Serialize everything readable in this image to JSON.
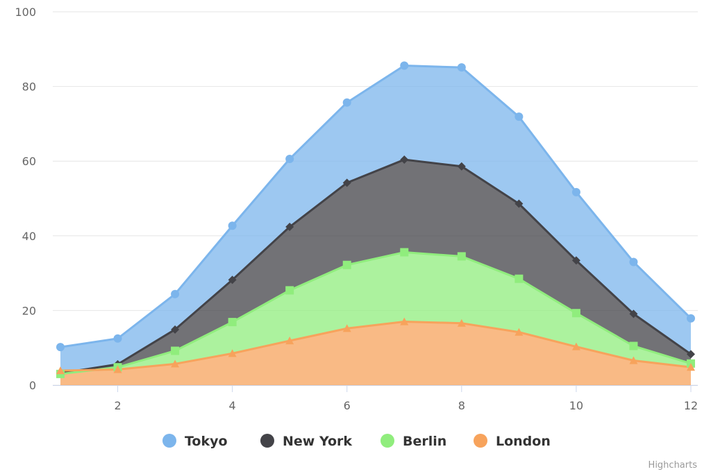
{
  "chart_data": {
    "type": "area",
    "stacking": "normal",
    "x": [
      1,
      2,
      3,
      4,
      5,
      6,
      7,
      8,
      9,
      10,
      11,
      12
    ],
    "x_ticks": [
      "2",
      "4",
      "6",
      "8",
      "10",
      "12"
    ],
    "y_ticks": [
      "0",
      "20",
      "40",
      "60",
      "80",
      "100"
    ],
    "xlim": [
      1,
      12
    ],
    "ylim": [
      0,
      100
    ],
    "grid": "horizontal",
    "legend_position": "bottom-center",
    "series": [
      {
        "name": "Tokyo",
        "color": "#7cb5ec",
        "marker": "circle",
        "values": [
          7.0,
          6.9,
          9.5,
          14.5,
          18.2,
          21.5,
          25.2,
          26.5,
          23.3,
          18.3,
          13.9,
          9.6
        ]
      },
      {
        "name": "New York",
        "color": "#434348",
        "marker": "diamond",
        "values": [
          0.2,
          0.8,
          5.7,
          11.3,
          17.0,
          22.0,
          24.8,
          24.1,
          20.1,
          14.1,
          8.6,
          2.5
        ]
      },
      {
        "name": "Berlin",
        "color": "#90ed7d",
        "marker": "square",
        "values": [
          -0.9,
          0.6,
          3.5,
          8.4,
          13.5,
          17.0,
          18.6,
          17.9,
          14.3,
          9.0,
          3.9,
          1.0
        ]
      },
      {
        "name": "London",
        "color": "#f7a35c",
        "marker": "triangle",
        "values": [
          3.9,
          4.2,
          5.7,
          8.5,
          11.9,
          15.2,
          17.0,
          16.6,
          14.2,
          10.3,
          6.6,
          4.8
        ]
      }
    ]
  },
  "credits": "Highcharts"
}
